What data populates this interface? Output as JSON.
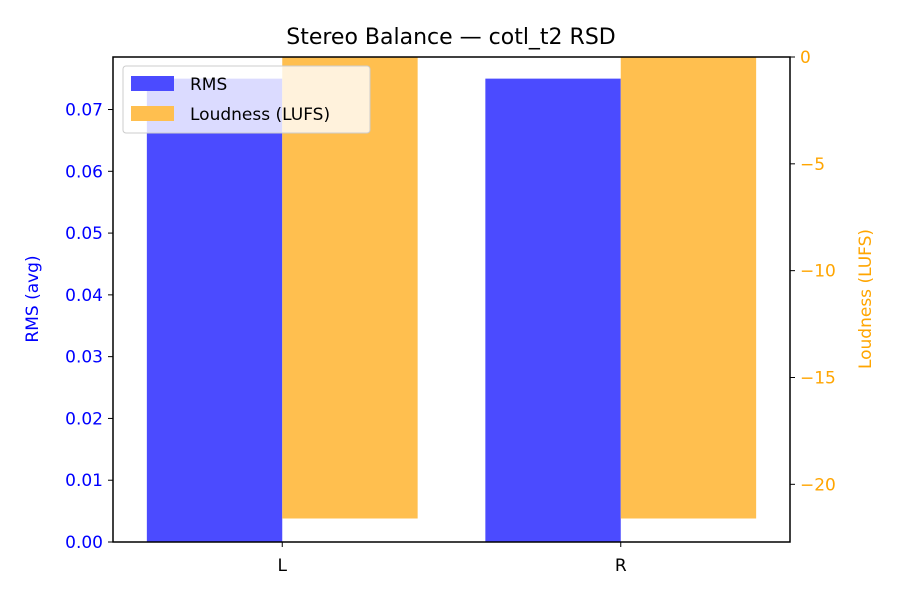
{
  "chart_data": {
    "type": "bar",
    "title": "Stereo Balance — cotl_t2 RSD",
    "categories": [
      "L",
      "R"
    ],
    "left_axis": {
      "label": "RMS (avg)",
      "color": "#0000ff",
      "range": [
        0,
        0.0785
      ],
      "ticks": [
        "0.00",
        "0.01",
        "0.02",
        "0.03",
        "0.04",
        "0.05",
        "0.06",
        "0.07"
      ]
    },
    "right_axis": {
      "label": "Loudness (LUFS)",
      "color": "#ffa500",
      "range": [
        -22.7,
        0
      ],
      "ticks": [
        "0",
        "−5",
        "−10",
        "−15",
        "−20"
      ]
    },
    "series": [
      {
        "name": "RMS",
        "axis": "left",
        "color": "#4b4bff",
        "values": [
          0.075,
          0.075
        ]
      },
      {
        "name": "Loudness (LUFS)",
        "axis": "right",
        "color": "#ffbf4f",
        "values": [
          -21.6,
          -21.6
        ]
      }
    ],
    "legend": {
      "position": "top-left",
      "items": [
        "RMS",
        "Loudness (LUFS)"
      ]
    }
  }
}
